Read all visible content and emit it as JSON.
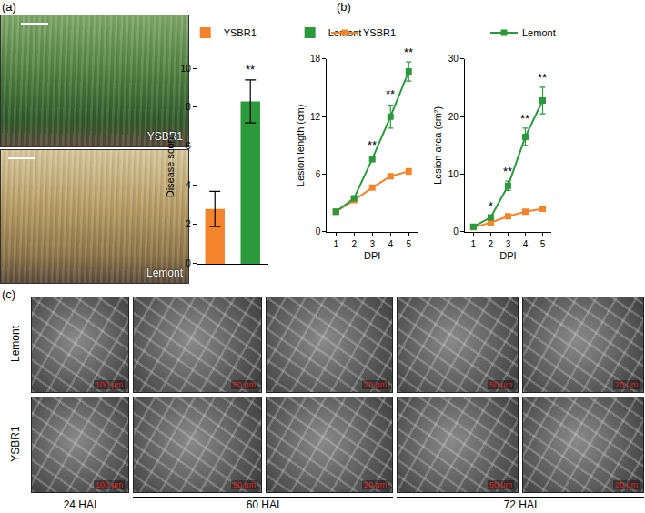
{
  "chart_data": [
    {
      "type": "bar",
      "ylabel": "Disease score",
      "categories": [
        "YSBR1",
        "Lemont"
      ],
      "values": [
        2.8,
        8.3
      ],
      "error": [
        0.9,
        1.1
      ],
      "colors": [
        "#f4842c",
        "#2b9a3c"
      ],
      "ylim": [
        0,
        10
      ],
      "yticks": [
        0,
        2,
        4,
        6,
        8,
        10
      ],
      "legend": "top",
      "tick_labels": "y",
      "grid": false,
      "annotations": [
        {
          "category": "Lemont",
          "y": 9.5,
          "text": "**"
        }
      ]
    },
    {
      "type": "line",
      "xlabel": "DPI",
      "ylabel": "Lesion length (cm)",
      "x": [
        1,
        2,
        3,
        4,
        5
      ],
      "xlim": [
        0.5,
        5.5
      ],
      "xticks": [
        1,
        2,
        3,
        4,
        5
      ],
      "ylim": [
        0,
        18
      ],
      "yticks": [
        0,
        6,
        12,
        18
      ],
      "marker": "square",
      "line_style": "solid",
      "legend": "top",
      "grid": false,
      "series": [
        {
          "name": "YSBR1",
          "color": "#f4842c",
          "values": [
            2.1,
            3.3,
            4.6,
            5.8,
            6.3
          ],
          "error": [
            0.1,
            0.2,
            0.2,
            0.2,
            0.3
          ]
        },
        {
          "name": "Lemont",
          "color": "#2b9a3c",
          "values": [
            2.1,
            3.5,
            7.6,
            12.0,
            16.7
          ],
          "error": [
            0.1,
            0.2,
            0.3,
            1.2,
            1.0
          ]
        }
      ],
      "annotations": [
        {
          "x": 3,
          "y": 8.1,
          "text": "**"
        },
        {
          "x": 4,
          "y": 13.4,
          "text": "**"
        },
        {
          "x": 5,
          "y": 17.8,
          "text": "**"
        }
      ]
    },
    {
      "type": "line",
      "xlabel": "DPI",
      "ylabel": "Lesion area (cm²)",
      "x": [
        1,
        2,
        3,
        4,
        5
      ],
      "xlim": [
        0.5,
        5.5
      ],
      "xticks": [
        1,
        2,
        3,
        4,
        5
      ],
      "ylim": [
        0,
        30
      ],
      "yticks": [
        0,
        10,
        20,
        30
      ],
      "marker": "square",
      "line_style": "solid",
      "grid": false,
      "series": [
        {
          "name": "YSBR1",
          "color": "#f4842c",
          "values": [
            0.8,
            1.6,
            2.7,
            3.5,
            4.0
          ],
          "error": [
            0.1,
            0.2,
            0.2,
            0.3,
            0.3
          ]
        },
        {
          "name": "Lemont",
          "color": "#2b9a3c",
          "values": [
            0.9,
            2.5,
            8.0,
            16.5,
            22.8
          ],
          "error": [
            0.1,
            0.3,
            0.8,
            1.5,
            2.3
          ]
        }
      ],
      "annotations": [
        {
          "x": 2,
          "y": 3.0,
          "text": "*"
        },
        {
          "x": 3,
          "y": 9.0,
          "text": "**"
        },
        {
          "x": 4,
          "y": 18.2,
          "text": "**"
        },
        {
          "x": 5,
          "y": 25.3,
          "text": "**"
        }
      ]
    }
  ],
  "panels": [
    "(a)",
    "(b)",
    "(c)"
  ],
  "photos": [
    "YSBR1",
    "Lemont"
  ],
  "sem": {
    "rows": [
      "Lemont",
      "YSBR1"
    ],
    "groups": [
      {
        "label": "24 HAI",
        "scale_bars": [
          "100 μm"
        ]
      },
      {
        "label": "60 HAI",
        "scale_bars": [
          "50 μm",
          "20 μm"
        ]
      },
      {
        "label": "72 HAI",
        "scale_bars": [
          "50 μm",
          "20 μm"
        ]
      }
    ]
  }
}
